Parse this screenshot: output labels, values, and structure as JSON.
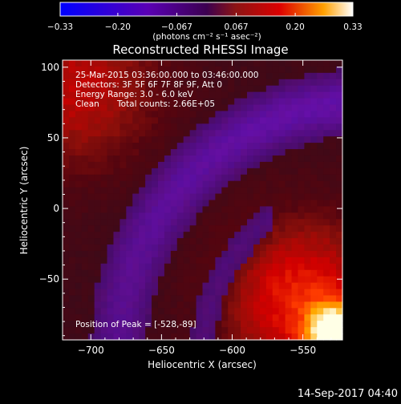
{
  "chart_data": {
    "type": "heatmap",
    "title": "Reconstructed RHESSI Image",
    "xlabel": "Heliocentric X (arcsec)",
    "ylabel": "Heliocentric Y (arcsec)",
    "xlim": [
      -720,
      -522
    ],
    "ylim": [
      -93,
      105
    ],
    "x_ticks": [
      -700,
      -650,
      -600,
      -550
    ],
    "y_ticks": [
      -50,
      0,
      50,
      100
    ],
    "x_tick_labels": [
      "−700",
      "−650",
      "−600",
      "−550"
    ],
    "y_tick_labels": [
      "−50",
      "0",
      "50",
      "100"
    ],
    "colorbar": {
      "range": [
        -0.33,
        0.33
      ],
      "ticks": [
        -0.33,
        -0.2,
        -0.067,
        0.067,
        0.2,
        0.33
      ],
      "tick_labels": [
        "−0.33",
        "−0.20",
        "−0.067",
        "0.067",
        "0.20",
        "0.33"
      ],
      "units": "(photons cm⁻² s⁻¹ asec⁻²)",
      "colors": [
        "#0000ff",
        "#5a00b4",
        "#8c1414",
        "#dc0000",
        "#ffa000",
        "#ffffff"
      ]
    },
    "peak": {
      "x": -528,
      "y": -89
    },
    "annotations": {
      "time_range": "25-Mar-2015 03:36:00.000 to 03:46:00.000",
      "detectors": "Detectors: 3F 5F 6F 7F 8F 9F, Att 0",
      "energy_range": "Energy Range: 3.0 - 6.0 keV",
      "clean": "Clean",
      "total_counts": "Total counts: 2.66E+05",
      "peak_label": "Position of Peak = [-528,-89]"
    }
  },
  "footer": {
    "timestamp": "14-Sep-2017 04:40"
  }
}
